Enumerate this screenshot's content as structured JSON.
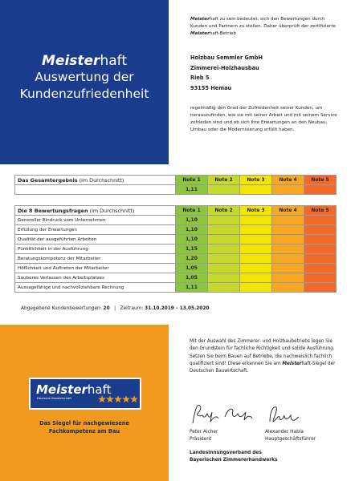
{
  "top_left": {
    "brand": [
      "Meister",
      "haft"
    ],
    "title_lines": [
      "Auswertung der",
      "Kundenzufriedenheit"
    ]
  },
  "intro": [
    "Meister",
    "haft zu sein bedeutet, sich den Bewertungen durch Kunden und Partnern zu stellen. Daher überprüft der zertifizierte ",
    "Meister",
    "haft-Betrieb"
  ],
  "address": [
    "Holzbau Semmler GmbH",
    "Zimmerei-Holzhausbau",
    "Rieb 5",
    "93155 Hemau"
  ],
  "description": "regelmäßig den Grad der Zufriedenheit seiner Kunden, um herauszufinden, wie sie mit seiner Arbeit und mit seinem Service zufrieden sind und ob sich ihre Erwartungen an den Neubau, Umbau oder die Modernisierung erfüllt haben.",
  "overall": {
    "heading": "Das Gesamtergebnis",
    "heading_note": "(im Durchschnitt)",
    "notes": [
      "Note 1",
      "Note 2",
      "Note 3",
      "Note 4",
      "Note 5"
    ],
    "value": "1,11"
  },
  "questions": {
    "heading": "Die 8 Bewertungsfragen",
    "heading_note": "(im Durchschnitt)",
    "notes": [
      "Note 1",
      "Note 2",
      "Note 3",
      "Note 4",
      "Note 5"
    ],
    "rows": [
      [
        "Genereller Eindruck vom Unternehmen",
        "1,10"
      ],
      [
        "Erfüllung der Erwartungen",
        "1,10"
      ],
      [
        "Qualität der ausgeführten Arbeiten",
        "1,10"
      ],
      [
        "Pünktlichkeit in der Ausführung",
        "1,15"
      ],
      [
        "Beratungskompetenz der Mitarbeiter",
        "1,20"
      ],
      [
        "Höflichkeit und Auftreten der Mitarbeiter",
        "1,05"
      ],
      [
        "Sauberes Verlassen des Arbeitsplatzes",
        "1,05"
      ],
      [
        "Aussagefähige und nachvollziehbare Rechnung",
        "1,11"
      ]
    ]
  },
  "summary": {
    "reviews_label": "Abgegebene Kundenbewertungen:",
    "reviews": "20",
    "separator": "|",
    "period_label": "Zeitraum:",
    "period": "31.10.2019 – 13.05.2020"
  },
  "seal": {
    "brand": [
      "Meister",
      "haft"
    ],
    "sub": "Deutsche Bauwirtschaft",
    "tagline": [
      "Das Siegel für nachgewiesene",
      "Fachkompetenz am Bau"
    ]
  },
  "closing": [
    "Mit der Auswahl des Zimmerer- und Holzbaubetriebs legen Sie den Grundstein für fachliche Richtigkeit und solide Ausführung. Setzen Sie beim Bauen auf Betriebe, die nachweislich fachlich qualifiziert sind! Diese erkennen Sie am ",
    "Meister",
    "haft-Siegel der Deutschen Bauwirtschaft."
  ],
  "signatories": [
    {
      "name": "Peter Aicher",
      "role": "Präsident"
    },
    {
      "name": "Alexander Habla",
      "role": "Hauptgeschäftsführer"
    }
  ],
  "association": [
    "Landesinnungsverband des",
    "Bayerischen Zimmererhandwerks"
  ]
}
